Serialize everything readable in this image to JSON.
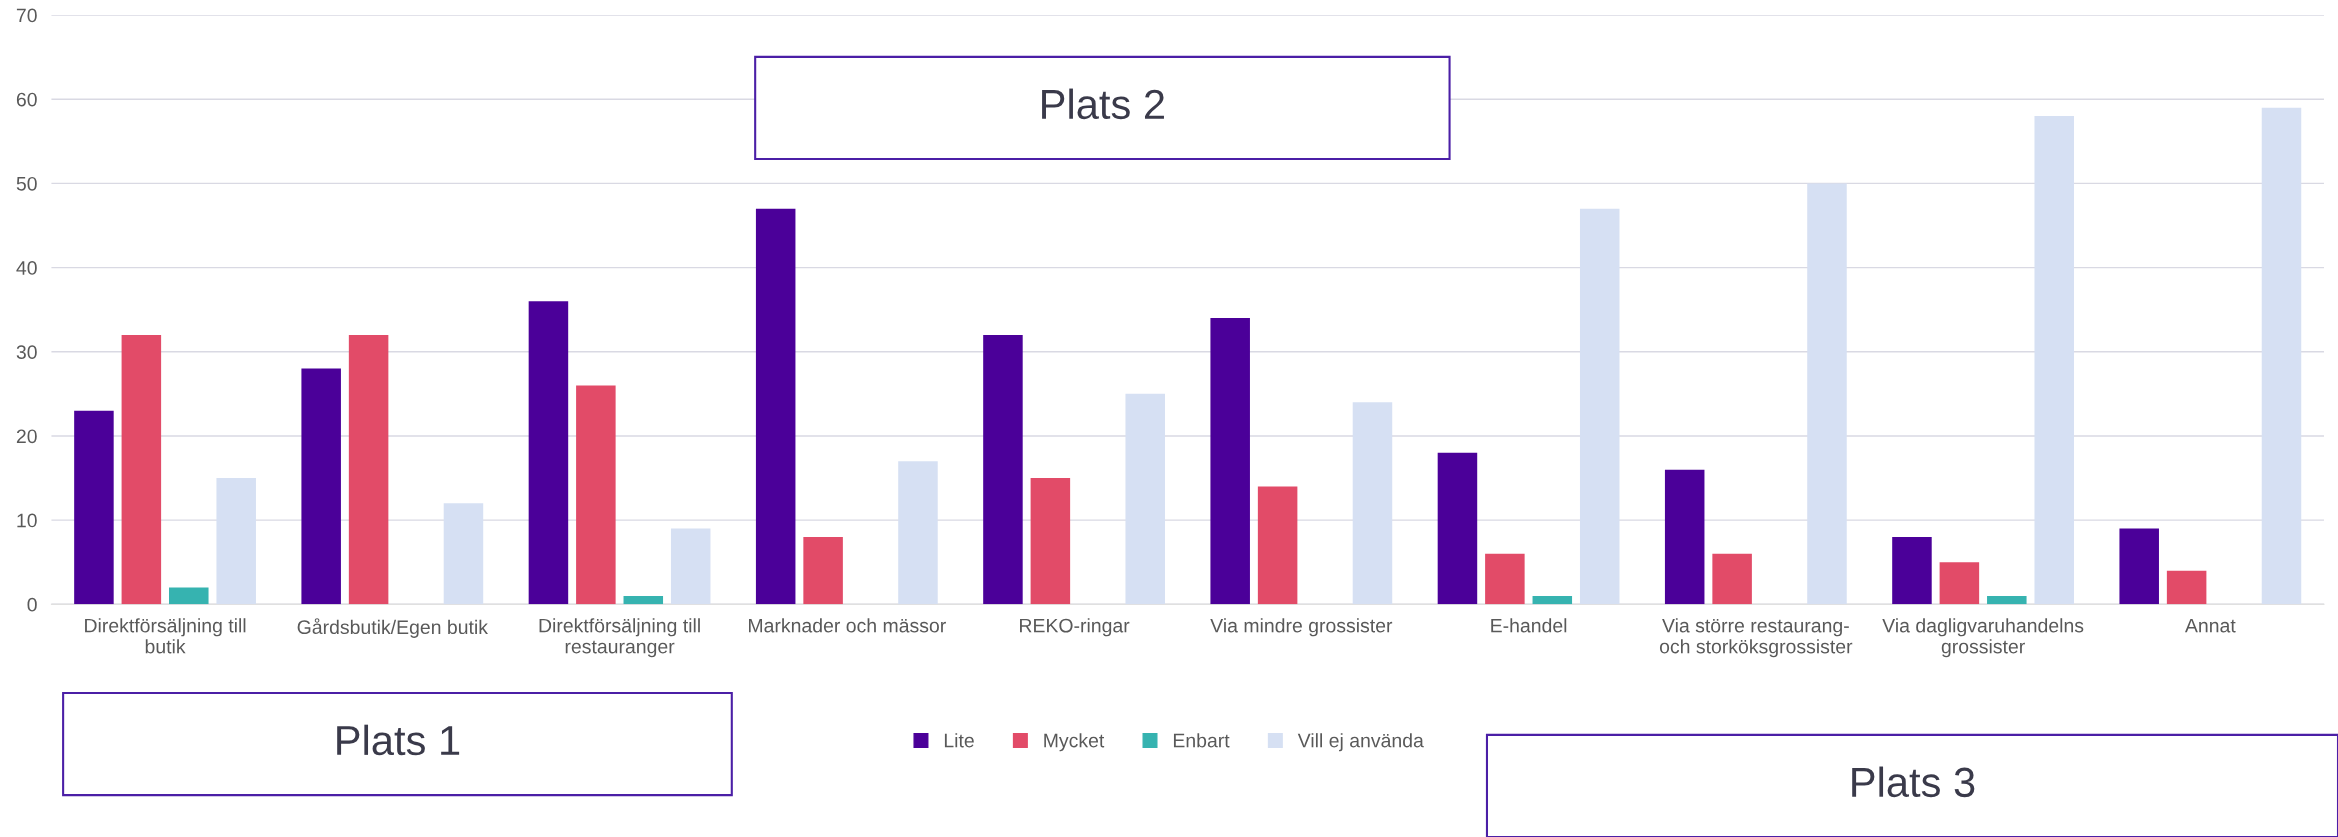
{
  "chart_data": {
    "type": "bar",
    "categories": [
      "Direktförsäljning till butik",
      "Gårdsbutik/Egen butik",
      "Direktförsäljning till restauranger",
      "Marknader och mässor",
      "REKO-ringar",
      "Via mindre grossister",
      "E-handel",
      "Via större restaurang- och storköksgrossister",
      "Via dagligvaruhandelns grossister",
      "Annat"
    ],
    "series": [
      {
        "name": "Lite",
        "color": "#4b0099",
        "values": [
          23,
          28,
          36,
          47,
          32,
          34,
          18,
          16,
          8,
          9
        ]
      },
      {
        "name": "Mycket",
        "color": "#e24b68",
        "values": [
          32,
          32,
          26,
          8,
          15,
          14,
          6,
          6,
          5,
          4
        ]
      },
      {
        "name": "Enbart",
        "color": "#36b3b0",
        "values": [
          2,
          0,
          1,
          0,
          0,
          0,
          1,
          0,
          1,
          0
        ]
      },
      {
        "name": "Vill ej använda",
        "color": "#d6e0f3",
        "values": [
          15,
          12,
          9,
          17,
          25,
          24,
          47,
          50,
          58,
          59
        ]
      }
    ],
    "ylim": [
      0,
      70
    ],
    "yticks": [
      0,
      10,
      20,
      30,
      40,
      50,
      60,
      70
    ],
    "grid": "y",
    "legend": "bottom",
    "annotations": [
      "Plats 1",
      "Plats 2",
      "Plats 3"
    ]
  }
}
